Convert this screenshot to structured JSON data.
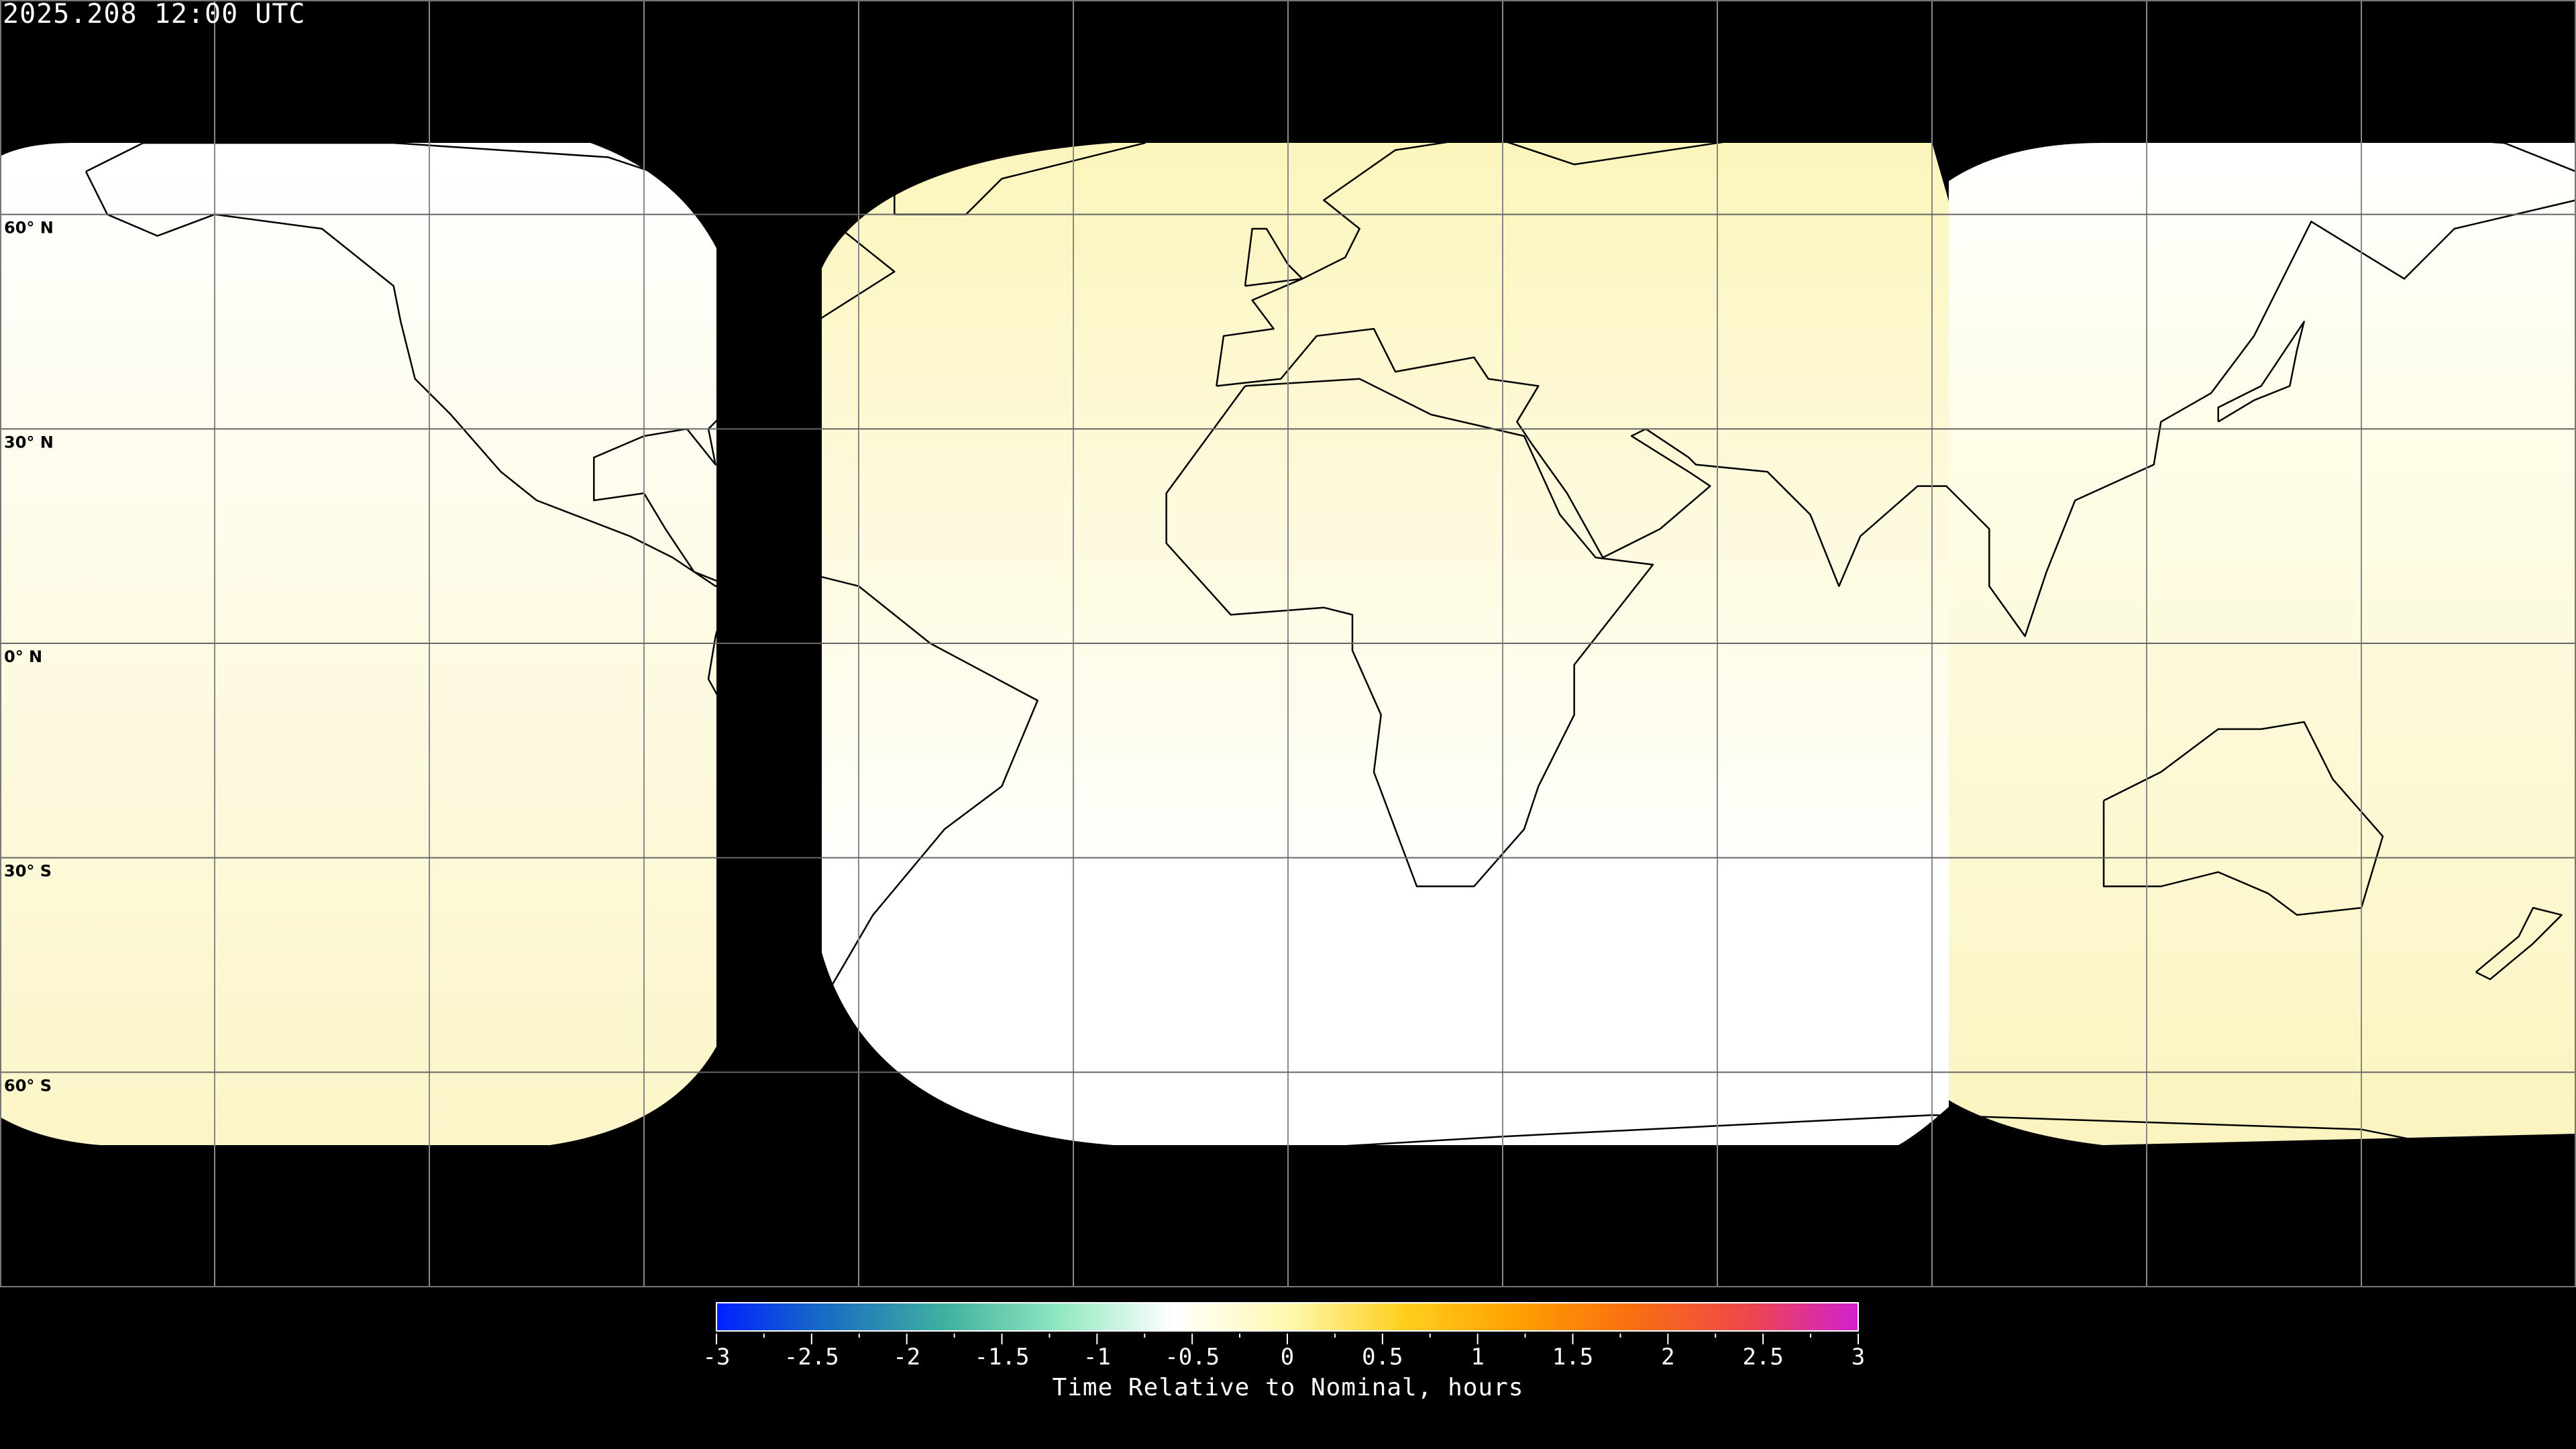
{
  "title": "2025.208 12:00 UTC",
  "map": {
    "projection": "equirectangular",
    "lon_range": [
      -180,
      180
    ],
    "lat_range": [
      -90,
      90
    ],
    "grid_spacing_deg": 30,
    "lat_labels": [
      {
        "lat": 60,
        "text": "60° N"
      },
      {
        "lat": 30,
        "text": "30° N"
      },
      {
        "lat": 0,
        "text": "0° N"
      },
      {
        "lat": -30,
        "text": "30° S"
      },
      {
        "lat": -60,
        "text": "60° S"
      }
    ],
    "colors": {
      "background": "#000000",
      "grid": "#000000",
      "coastline": "#000000",
      "swath_white": "#ffffff",
      "swath_yellow": "#fcf5c0"
    }
  },
  "colorbar": {
    "min": -3,
    "max": 3,
    "tick_labels": [
      "-3",
      "-2.5",
      "-2",
      "-1.5",
      "-1",
      "-0.5",
      "0",
      "0.5",
      "1",
      "1.5",
      "2",
      "2.5",
      "3"
    ],
    "label": "Time Relative to Nominal, hours",
    "colors": [
      "#0020ff",
      "#1a70c0",
      "#40b0a0",
      "#90e8c0",
      "#ffffff",
      "#fff8b0",
      "#ffd020",
      "#ffa000",
      "#f87010",
      "#f04848",
      "#d020d0"
    ]
  }
}
